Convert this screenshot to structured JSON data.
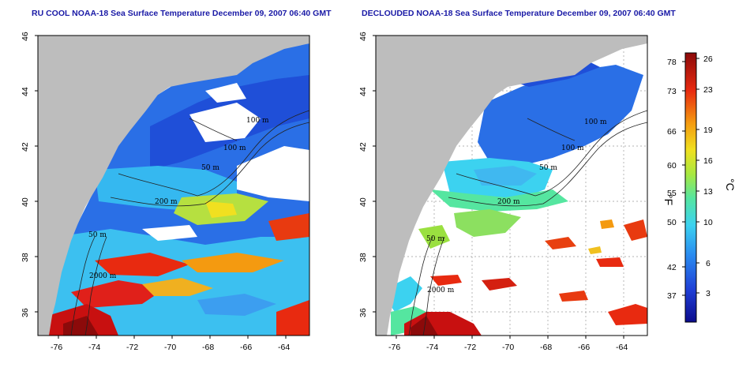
{
  "titles": {
    "left": "RU COOL NOAA-18 Sea Surface Temperature December 09, 2007 06:40 GMT",
    "right": "DECLOUDED NOAA-18 Sea Surface Temperature December 09, 2007 06:40 GMT"
  },
  "axes": {
    "lat_ticks": [
      "46",
      "44",
      "42",
      "40",
      "38",
      "36"
    ],
    "lon_ticks": [
      "-76",
      "-74",
      "-72",
      "-70",
      "-68",
      "-66",
      "-64"
    ]
  },
  "contour_labels": {
    "left": [
      "100 m",
      "100 m",
      "50 m",
      "200 m",
      "50 m",
      "2000 m"
    ],
    "right": [
      "100 m",
      "100 m",
      "50 m",
      "200 m",
      "50 m",
      "2000 m"
    ]
  },
  "colorbar": {
    "fahrenheit_unit": "°F",
    "celsius_unit": "°C",
    "fahrenheit_ticks": [
      "78",
      "73",
      "66",
      "60",
      "55",
      "50",
      "42",
      "37"
    ],
    "celsius_ticks": [
      "26",
      "23",
      "19",
      "16",
      "13",
      "10",
      "6",
      "3"
    ]
  },
  "colors": {
    "land": "#bdbdbd",
    "cloud": "#ffffff",
    "title": "#1a1aa6",
    "scale": [
      "#0b0b8c",
      "#1f3fd6",
      "#2a8cf0",
      "#3cd2f0",
      "#55e6a0",
      "#a8e840",
      "#f0e020",
      "#f49a10",
      "#e82a10",
      "#8c0a0a"
    ]
  }
}
